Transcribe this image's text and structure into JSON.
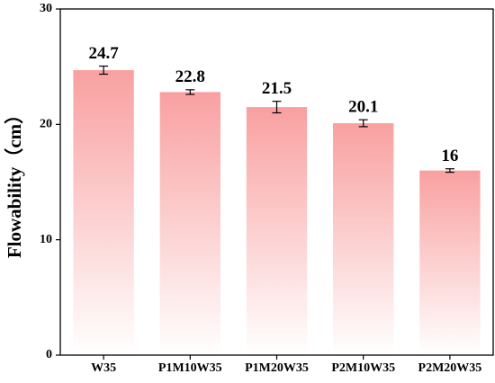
{
  "chart_data": {
    "type": "bar",
    "y_label": "Flowability（cm）",
    "categories": [
      "W35",
      "P1M10W35",
      "P1M20W35",
      "P2M10W35",
      "P2M20W35"
    ],
    "values": [
      24.7,
      22.8,
      21.5,
      20.1,
      16
    ],
    "errors": [
      0.35,
      0.2,
      0.5,
      0.3,
      0.15
    ],
    "color": "#f9a0a0",
    "ylim": [
      0,
      30
    ],
    "yticks": [
      0,
      10,
      20,
      30
    ]
  }
}
